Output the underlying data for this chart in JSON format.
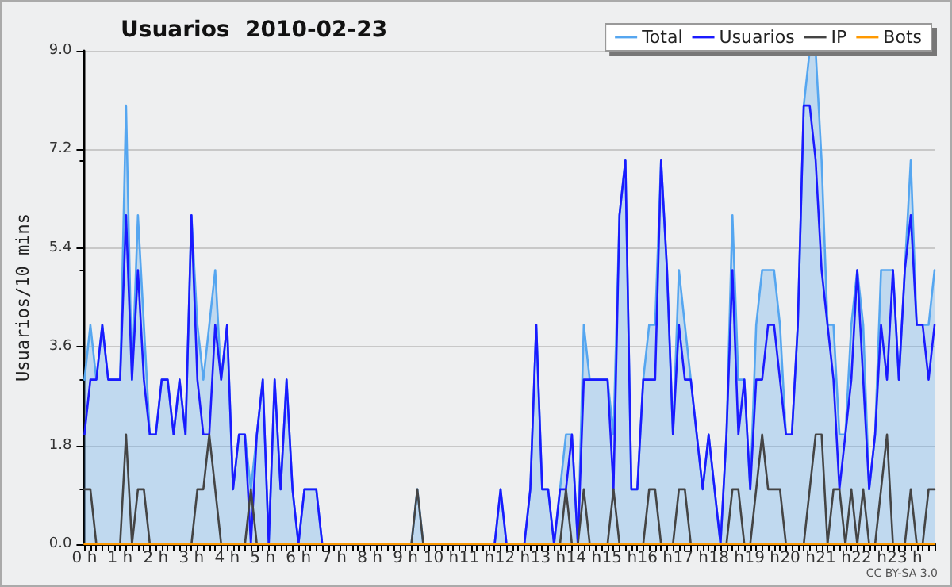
{
  "chart_data": {
    "type": "line",
    "title": "Usuarios  2010-02-23",
    "ylabel": "Usuarios/10 mins",
    "categories": [
      "0 h",
      null,
      null,
      null,
      null,
      null,
      "1 h",
      null,
      null,
      null,
      null,
      null,
      "2 h",
      null,
      null,
      null,
      null,
      null,
      "3 h",
      null,
      null,
      null,
      null,
      null,
      "4 h",
      null,
      null,
      null,
      null,
      null,
      "5 h",
      null,
      null,
      null,
      null,
      null,
      "6 h",
      null,
      null,
      null,
      null,
      null,
      "7 h",
      null,
      null,
      null,
      null,
      null,
      "8 h",
      null,
      null,
      null,
      null,
      null,
      "9 h",
      null,
      null,
      null,
      null,
      null,
      "10 h",
      null,
      null,
      null,
      null,
      null,
      "11 h",
      null,
      null,
      null,
      null,
      null,
      "12 h",
      null,
      null,
      null,
      null,
      null,
      "13 h",
      null,
      null,
      null,
      null,
      null,
      "14 h",
      null,
      null,
      null,
      null,
      null,
      "15 h",
      null,
      null,
      null,
      null,
      null,
      "16 h",
      null,
      null,
      null,
      null,
      null,
      "17 h",
      null,
      null,
      null,
      null,
      null,
      "18 h",
      null,
      null,
      null,
      null,
      null,
      "19 h",
      null,
      null,
      null,
      null,
      null,
      "20 h",
      null,
      null,
      null,
      null,
      null,
      "21 h",
      null,
      null,
      null,
      null,
      null,
      "22 h",
      null,
      null,
      null,
      null,
      null,
      "23 h",
      null,
      null,
      null,
      null,
      null
    ],
    "series": [
      {
        "name": "Total",
        "type": "area",
        "color": "#55a6f0",
        "values": [
          3,
          4,
          3,
          4,
          3,
          3,
          3,
          8,
          3,
          6,
          4,
          2,
          2,
          3,
          3,
          2,
          3,
          2,
          6,
          4,
          3,
          4,
          5,
          3,
          4,
          1,
          2,
          2,
          1,
          2,
          3,
          0,
          3,
          1,
          3,
          1,
          0,
          1,
          1,
          1,
          0,
          0,
          0,
          0,
          0,
          0,
          0,
          0,
          0,
          0,
          0,
          0,
          0,
          0,
          0,
          0,
          1,
          0,
          0,
          0,
          0,
          0,
          0,
          0,
          0,
          0,
          0,
          0,
          0,
          0,
          1,
          0,
          0,
          0,
          0,
          1,
          4,
          1,
          1,
          0,
          1,
          2,
          2,
          0,
          4,
          3,
          3,
          3,
          3,
          2,
          6,
          7,
          1,
          1,
          3,
          4,
          4,
          7,
          5,
          2,
          5,
          4,
          3,
          2,
          1,
          2,
          1,
          0,
          2,
          6,
          3,
          3,
          1,
          4,
          5,
          5,
          5,
          4,
          2,
          2,
          4,
          8,
          9,
          9,
          7,
          4,
          4,
          2,
          2,
          4,
          5,
          4,
          1,
          2,
          5,
          5,
          5,
          3,
          5,
          7,
          4,
          4,
          4,
          5
        ]
      },
      {
        "name": "Usuarios",
        "color": "#1a1aff",
        "values": [
          2,
          3,
          3,
          4,
          3,
          3,
          3,
          6,
          3,
          5,
          3,
          2,
          2,
          3,
          3,
          2,
          3,
          2,
          6,
          3,
          2,
          2,
          4,
          3,
          4,
          1,
          2,
          2,
          0,
          2,
          3,
          0,
          3,
          1,
          3,
          1,
          0,
          1,
          1,
          1,
          0,
          0,
          0,
          0,
          0,
          0,
          0,
          0,
          0,
          0,
          0,
          0,
          0,
          0,
          0,
          0,
          0,
          0,
          0,
          0,
          0,
          0,
          0,
          0,
          0,
          0,
          0,
          0,
          0,
          0,
          1,
          0,
          0,
          0,
          0,
          1,
          4,
          1,
          1,
          0,
          1,
          1,
          2,
          0,
          3,
          3,
          3,
          3,
          3,
          1,
          6,
          7,
          1,
          1,
          3,
          3,
          3,
          7,
          5,
          2,
          4,
          3,
          3,
          2,
          1,
          2,
          1,
          0,
          2,
          5,
          2,
          3,
          1,
          3,
          3,
          4,
          4,
          3,
          2,
          2,
          4,
          8,
          8,
          7,
          5,
          4,
          3,
          1,
          2,
          3,
          5,
          3,
          1,
          2,
          4,
          3,
          5,
          3,
          5,
          6,
          4,
          4,
          3,
          4
        ]
      },
      {
        "name": "IP",
        "color": "#444444",
        "values": [
          1,
          1,
          0,
          0,
          0,
          0,
          0,
          2,
          0,
          1,
          1,
          0,
          0,
          0,
          0,
          0,
          0,
          0,
          0,
          1,
          1,
          2,
          1,
          0,
          0,
          0,
          0,
          0,
          1,
          0,
          0,
          0,
          0,
          0,
          0,
          0,
          0,
          0,
          0,
          0,
          0,
          0,
          0,
          0,
          0,
          0,
          0,
          0,
          0,
          0,
          0,
          0,
          0,
          0,
          0,
          0,
          1,
          0,
          0,
          0,
          0,
          0,
          0,
          0,
          0,
          0,
          0,
          0,
          0,
          0,
          0,
          0,
          0,
          0,
          0,
          0,
          0,
          0,
          0,
          0,
          0,
          1,
          0,
          0,
          1,
          0,
          0,
          0,
          0,
          1,
          0,
          0,
          0,
          0,
          0,
          1,
          1,
          0,
          0,
          0,
          1,
          1,
          0,
          0,
          0,
          0,
          0,
          0,
          0,
          1,
          1,
          0,
          0,
          1,
          2,
          1,
          1,
          1,
          0,
          0,
          0,
          0,
          1,
          2,
          2,
          0,
          1,
          1,
          0,
          1,
          0,
          1,
          0,
          0,
          1,
          2,
          0,
          0,
          0,
          1,
          0,
          0,
          1,
          1
        ]
      },
      {
        "name": "Bots",
        "color": "#ff9900",
        "values": [
          0,
          0,
          0,
          0,
          0,
          0,
          0,
          0,
          0,
          0,
          0,
          0,
          0,
          0,
          0,
          0,
          0,
          0,
          0,
          0,
          0,
          0,
          0,
          0,
          0,
          0,
          0,
          0,
          0,
          0,
          0,
          0,
          0,
          0,
          0,
          0,
          0,
          0,
          0,
          0,
          0,
          0,
          0,
          0,
          0,
          0,
          0,
          0,
          0,
          0,
          0,
          0,
          0,
          0,
          0,
          0,
          0,
          0,
          0,
          0,
          0,
          0,
          0,
          0,
          0,
          0,
          0,
          0,
          0,
          0,
          0,
          0,
          0,
          0,
          0,
          0,
          0,
          0,
          0,
          0,
          0,
          0,
          0,
          0,
          0,
          0,
          0,
          0,
          0,
          0,
          0,
          0,
          0,
          0,
          0,
          0,
          0,
          0,
          0,
          0,
          0,
          0,
          0,
          0,
          0,
          0,
          0,
          0,
          0,
          0,
          0,
          0,
          0,
          0,
          0,
          0,
          0,
          0,
          0,
          0,
          0,
          0,
          0,
          0,
          0,
          0,
          0,
          0,
          0,
          0,
          0,
          0,
          0,
          0,
          0,
          0,
          0,
          0,
          0,
          0,
          0,
          0,
          0,
          0
        ]
      }
    ],
    "ylim": [
      0,
      9
    ],
    "yticks": [
      {
        "value": 0,
        "label": "0.0"
      },
      {
        "value": 1.8,
        "label": "1.8"
      },
      {
        "value": 3.6,
        "label": "3.6"
      },
      {
        "value": 5.4,
        "label": "5.4"
      },
      {
        "value": 7.2,
        "label": "7.2"
      },
      {
        "value": 9,
        "label": "9.0"
      }
    ],
    "grid": "y",
    "legend": "top right",
    "marker": "none",
    "line_style": "solid",
    "annotations": [
      "CC BY-SA 3.0"
    ]
  }
}
